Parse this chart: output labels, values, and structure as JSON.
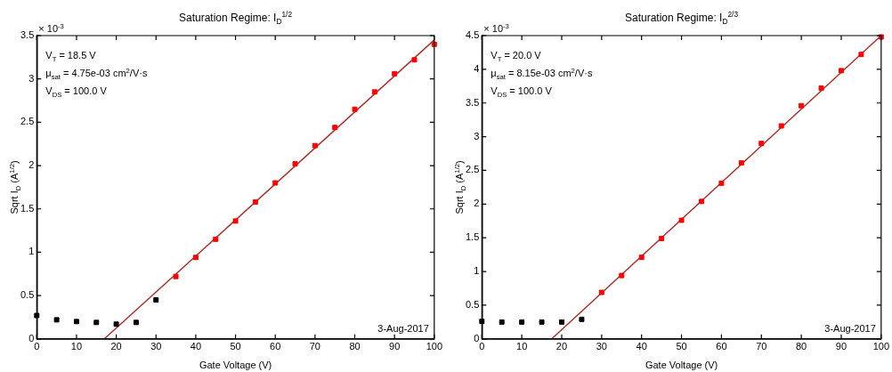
{
  "chart_data": [
    {
      "type": "scatter",
      "title": "Saturation Regime: I$_{D}$$^{1/2}$",
      "xlabel": "Gate Voltage (V)",
      "ylabel": "Sqrt I$_{D}$ (A$^{1/2}$)",
      "annotations": [
        "× 10$^{-3}$",
        "V$_{T}$ = 18.5 V",
        "μ$_{sat}$ = 4.75e-03 cm$^{2}$/V·s",
        "V$_{DS}$ = 100.0 V",
        "3-Aug-2017"
      ],
      "xlim": [
        0,
        100
      ],
      "xticks": [
        0,
        10,
        20,
        30,
        40,
        50,
        60,
        70,
        80,
        90,
        100
      ],
      "ylim": [
        0,
        3.5
      ],
      "yticks": [
        0,
        0.5,
        1,
        1.5,
        2,
        2.5,
        3,
        3.5
      ],
      "grid": false,
      "legend": false,
      "marker": "square",
      "series": [
        {
          "type": "scatter",
          "color": "#000000",
          "x": [
            0,
            5,
            10,
            15,
            20,
            25,
            30
          ],
          "values": [
            0.27,
            0.22,
            0.2,
            0.19,
            0.17,
            0.19,
            0.45
          ]
        },
        {
          "type": "scatter",
          "color": "#ff0000",
          "x": [
            35,
            40,
            45,
            50,
            55,
            60,
            65,
            70,
            75,
            80,
            85,
            90,
            95,
            100
          ],
          "values": [
            0.72,
            0.94,
            1.15,
            1.36,
            1.58,
            1.8,
            2.02,
            2.23,
            2.44,
            2.65,
            2.85,
            3.06,
            3.22,
            3.4
          ]
        },
        {
          "type": "line",
          "color": "#b03030",
          "marker": "none",
          "x": [
            17,
            100
          ],
          "values": [
            0,
            3.45
          ]
        }
      ]
    },
    {
      "type": "scatter",
      "title": "Saturation Regime: I$_{D}$$^{2/3}$",
      "xlabel": "Gate Voltage (V)",
      "ylabel": "Sqrt I$_{D}$ (A$^{1/2}$)",
      "annotations": [
        "× 10$^{-3}$",
        "V$_{T}$ = 20.0 V",
        "μ$_{sat}$ = 8.15e-03 cm$^{2}$/V·s",
        "V$_{DS}$ = 100.0 V",
        "3-Aug-2017"
      ],
      "xlim": [
        0,
        100
      ],
      "xticks": [
        0,
        10,
        20,
        30,
        40,
        50,
        60,
        70,
        80,
        90,
        100
      ],
      "ylim": [
        0,
        4.5
      ],
      "yticks": [
        0,
        0.5,
        1,
        1.5,
        2,
        2.5,
        3,
        3.5,
        4,
        4.5
      ],
      "grid": false,
      "legend": false,
      "marker": "square",
      "series": [
        {
          "type": "scatter",
          "color": "#000000",
          "x": [
            0,
            5,
            10,
            15,
            20,
            25
          ],
          "values": [
            0.26,
            0.25,
            0.25,
            0.25,
            0.25,
            0.29
          ]
        },
        {
          "type": "scatter",
          "color": "#ff0000",
          "x": [
            30,
            35,
            40,
            45,
            50,
            55,
            60,
            65,
            70,
            75,
            80,
            85,
            90,
            95,
            100
          ],
          "values": [
            0.69,
            0.94,
            1.21,
            1.49,
            1.76,
            2.04,
            2.31,
            2.61,
            2.9,
            3.16,
            3.46,
            3.72,
            3.98,
            4.22,
            4.48
          ]
        },
        {
          "type": "line",
          "color": "#b03030",
          "marker": "none",
          "x": [
            17.5,
            100
          ],
          "values": [
            0,
            4.5
          ]
        }
      ]
    }
  ]
}
